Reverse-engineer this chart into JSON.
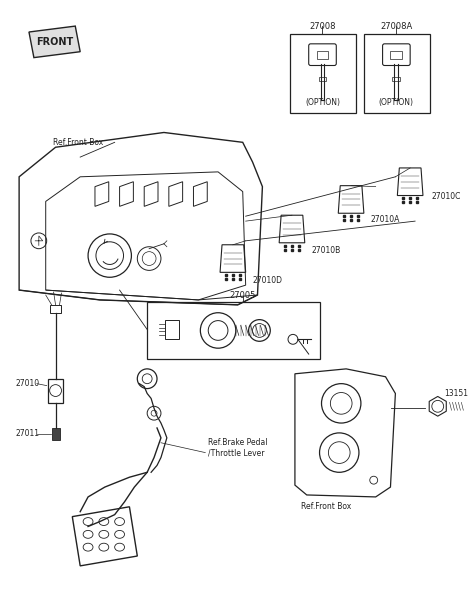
{
  "bg_color": "#ffffff",
  "line_color": "#222222",
  "fig_width": 4.74,
  "fig_height": 5.9,
  "labels": {
    "front": "FRONT",
    "ref_front_box_top": "Ref.Front Box",
    "ref_front_box_bot": "Ref.Front Box",
    "ref_brake": "Ref.Brake Pedal\n/Throttle Lever",
    "p27008": "27008",
    "p27008a": "27008A",
    "p27005": "27005",
    "p27010": "27010",
    "p27010a": "27010A",
    "p27010b": "27010B",
    "p27010c": "27010C",
    "p27010d": "27010D",
    "p27011": "27011",
    "p13151": "13151",
    "option": "(OPTION)"
  }
}
